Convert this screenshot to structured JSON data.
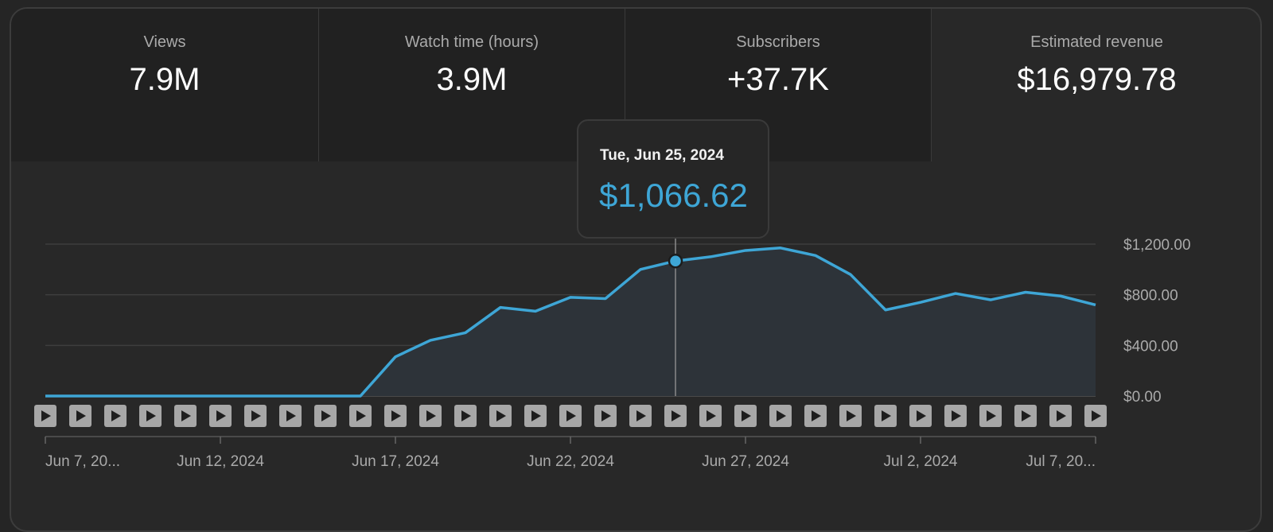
{
  "metrics": [
    {
      "label": "Views",
      "value": "7.9M"
    },
    {
      "label": "Watch time (hours)",
      "value": "3.9M"
    },
    {
      "label": "Subscribers",
      "value": "+37.7K"
    },
    {
      "label": "Estimated revenue",
      "value": "$16,979.78"
    }
  ],
  "tooltip": {
    "date": "Tue, Jun 25, 2024",
    "value": "$1,066.62"
  },
  "colors": {
    "line": "#3ea6d6",
    "fill": "#2d3339",
    "grid": "#3e3e3e",
    "text": "#aaaaaa",
    "video_marker": "#a7a7a7"
  },
  "video_marker_icon": "play-icon",
  "chart_data": {
    "type": "area",
    "title": "Estimated revenue",
    "series": [
      {
        "name": "Estimated revenue",
        "values": [
          0,
          0,
          0,
          0,
          0,
          0,
          0,
          0,
          0,
          0,
          310,
          440,
          500,
          700,
          670,
          780,
          770,
          1000,
          1066.62,
          1100,
          1150,
          1170,
          1110,
          960,
          680,
          740,
          810,
          760,
          820,
          790,
          720
        ]
      }
    ],
    "x_labels": [
      {
        "index": 0,
        "label": "Jun 7, 20..."
      },
      {
        "index": 5,
        "label": "Jun 12, 2024"
      },
      {
        "index": 10,
        "label": "Jun 17, 2024"
      },
      {
        "index": 15,
        "label": "Jun 22, 2024"
      },
      {
        "index": 20,
        "label": "Jun 27, 2024"
      },
      {
        "index": 25,
        "label": "Jul 2, 2024"
      },
      {
        "index": 30,
        "label": "Jul 7, 20..."
      }
    ],
    "y_ticks": [
      0,
      400,
      800,
      1200
    ],
    "y_tick_labels": [
      "$0.00",
      "$400.00",
      "$800.00",
      "$1,200.00"
    ],
    "ylim": [
      0,
      1200
    ],
    "hover_index": 18,
    "video_markers": 31,
    "legend": "none",
    "grid": true
  }
}
